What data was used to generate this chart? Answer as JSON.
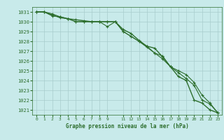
{
  "title": "Graphe pression niveau de la mer (hPa)",
  "background_color": "#c8eaea",
  "grid_color": "#a8cccc",
  "line_color": "#2d6e2d",
  "xlim": [
    -0.5,
    23.5
  ],
  "ylim": [
    1020.5,
    1031.5
  ],
  "yticks": [
    1021,
    1022,
    1023,
    1024,
    1025,
    1026,
    1027,
    1028,
    1029,
    1030,
    1031
  ],
  "xticks": [
    0,
    1,
    2,
    3,
    4,
    5,
    6,
    7,
    8,
    9,
    11,
    12,
    13,
    14,
    15,
    16,
    17,
    18,
    19,
    20,
    21,
    22,
    23
  ],
  "series": [
    [
      1031.0,
      1031.0,
      1030.6,
      1030.5,
      1030.3,
      1030.2,
      1030.1,
      1030.0,
      1030.0,
      1030.0,
      1030.0,
      1029.2,
      1028.8,
      1028.1,
      1027.5,
      1027.3,
      1026.4,
      1025.4,
      1024.4,
      1024.0,
      1022.0,
      1021.7,
      1021.0,
      1020.7
    ],
    [
      1031.0,
      1031.0,
      1030.7,
      1030.4,
      1030.3,
      1030.0,
      1030.0,
      1030.0,
      1030.0,
      1029.5,
      1030.0,
      1029.0,
      1028.5,
      1028.0,
      1027.4,
      1026.8,
      1026.2,
      1025.4,
      1024.8,
      1024.2,
      1023.5,
      1022.0,
      1021.6,
      1020.7
    ],
    [
      1031.0,
      1031.0,
      1030.8,
      1030.5,
      1030.3,
      1030.0,
      1030.0,
      1030.0,
      1030.0,
      1030.0,
      1030.0,
      1029.0,
      1028.5,
      1028.0,
      1027.5,
      1026.8,
      1026.5,
      1025.4,
      1025.0,
      1024.6,
      1023.8,
      1022.5,
      1021.7,
      1020.7
    ]
  ]
}
